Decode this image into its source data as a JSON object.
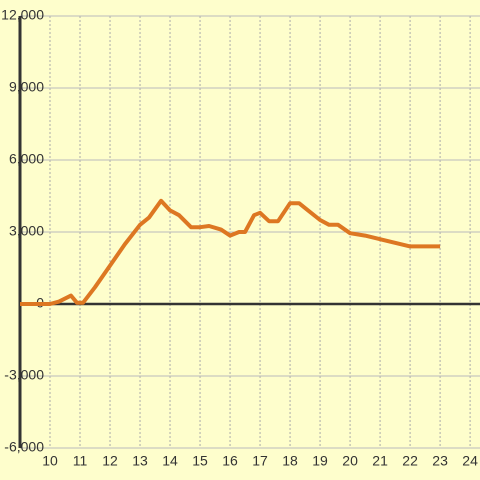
{
  "chart_data": {
    "type": "line",
    "x": [
      9,
      10,
      10.3,
      10.7,
      10.9,
      11.1,
      11.5,
      12,
      12.5,
      13,
      13.3,
      13.7,
      14,
      14.3,
      14.7,
      15,
      15.3,
      15.7,
      16,
      16.3,
      16.5,
      16.8,
      17,
      17.3,
      17.6,
      18,
      18.3,
      18.6,
      19,
      19.3,
      19.6,
      20,
      20.5,
      21,
      22,
      23
    ],
    "series": [
      {
        "color": "#dd7722",
        "values": [
          0,
          0,
          100,
          350,
          50,
          50,
          700,
          1600,
          2500,
          3300,
          3600,
          4300,
          3900,
          3700,
          3200,
          3200,
          3250,
          3100,
          2850,
          3000,
          3000,
          3700,
          3800,
          3450,
          3450,
          4200,
          4200,
          3900,
          3500,
          3300,
          3300,
          2950,
          2850,
          2700,
          2400,
          2400
        ]
      }
    ],
    "xlim": [
      9,
      24.33
    ],
    "xticks": [
      10,
      11,
      12,
      13,
      14,
      15,
      16,
      17,
      18,
      19,
      20,
      21,
      22,
      23,
      24
    ],
    "ylim": [
      -6000,
      12000
    ],
    "yticks": [
      {
        "value": -6000,
        "label": "-6,000"
      },
      {
        "value": -3000,
        "label": "-3,000"
      },
      0,
      {
        "value": 3000,
        "label": "3,000"
      },
      {
        "value": 6000,
        "label": "6,000"
      },
      {
        "value": 9000,
        "label": "9,000"
      },
      {
        "value": 12000,
        "label": "12,000"
      }
    ],
    "grid": true
  }
}
